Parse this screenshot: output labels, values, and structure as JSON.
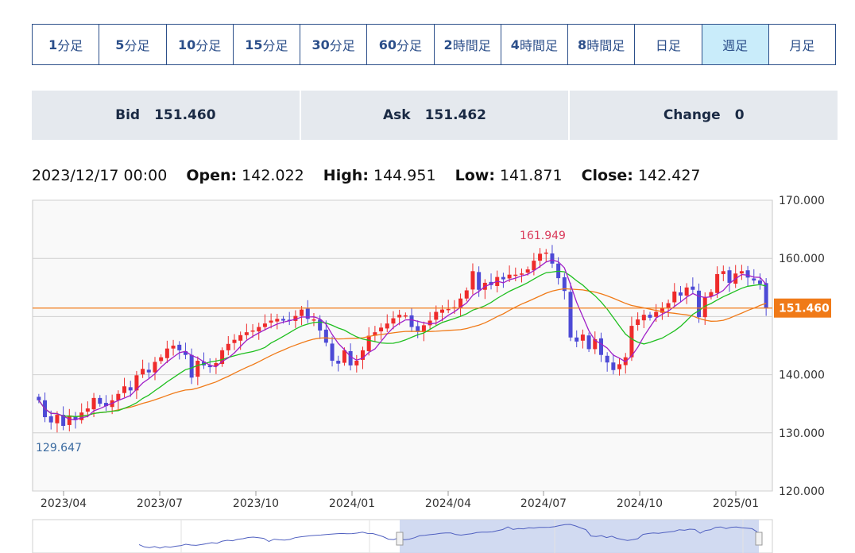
{
  "tabs": [
    {
      "num": "1",
      "unit": "分足"
    },
    {
      "num": "5",
      "unit": "分足"
    },
    {
      "num": "10",
      "unit": "分足"
    },
    {
      "num": "15",
      "unit": "分足"
    },
    {
      "num": "30",
      "unit": "分足"
    },
    {
      "num": "60",
      "unit": "分足"
    },
    {
      "num": "2",
      "unit": "時間足"
    },
    {
      "num": "4",
      "unit": "時間足"
    },
    {
      "num": "8",
      "unit": "時間足"
    },
    {
      "num": "",
      "unit": "日足"
    },
    {
      "num": "",
      "unit": "週足"
    },
    {
      "num": "",
      "unit": "月足"
    }
  ],
  "active_tab": 10,
  "quotes": {
    "bid_label": "Bid",
    "bid_value": "151.460",
    "ask_label": "Ask",
    "ask_value": "151.462",
    "change_label": "Change",
    "change_value": "0"
  },
  "ohlc": {
    "date": "2023/12/17 00:00",
    "open_label": "Open:",
    "open": "142.022",
    "high_label": "High:",
    "high": "144.951",
    "low_label": "Low:",
    "low": "141.871",
    "close_label": "Close:",
    "close": "142.427"
  },
  "colors": {
    "up": "#ee2b2b",
    "down": "#4d4ad6",
    "ma_short": "#a020c8",
    "ma_mid": "#1fbf1f",
    "ma_long": "#f07a18",
    "price_line": "#f07a18",
    "tab_text": "#2c4f8a",
    "active_tab_bg": "#c9ecfa"
  },
  "chart_data": {
    "type": "candlestick",
    "y_ticks": [
      "170.000",
      "160.000",
      "140.000",
      "130.000",
      "120.000"
    ],
    "ylim": [
      120,
      170
    ],
    "x_ticks": [
      "2023/04",
      "2023/07",
      "2023/10",
      "2024/01",
      "2024/04",
      "2024/07",
      "2024/10",
      "2025/01"
    ],
    "current_price": "151.460",
    "max_label": "161.949",
    "min_label": "129.647",
    "closes": [
      135.6,
      132.7,
      131.8,
      133.1,
      131.2,
      133.0,
      132.2,
      133.5,
      134.2,
      136.0,
      135.0,
      134.6,
      135.6,
      136.7,
      138.0,
      137.3,
      139.9,
      141.0,
      140.4,
      142.2,
      143.0,
      144.5,
      145.0,
      144.2,
      143.4,
      139.5,
      142.4,
      141.6,
      141.3,
      142.0,
      144.2,
      145.3,
      146.0,
      146.8,
      147.3,
      147.6,
      148.2,
      148.8,
      149.3,
      149.6,
      149.3,
      149.4,
      150.1,
      151.2,
      149.6,
      149.5,
      147.6,
      145.5,
      142.4,
      141.9,
      144.2,
      141.6,
      142.4,
      144.2,
      146.7,
      147.3,
      148.1,
      148.8,
      149.7,
      150.3,
      150.2,
      148.2,
      147.5,
      148.5,
      149.3,
      150.8,
      151.2,
      151.3,
      151.6,
      153.1,
      154.5,
      157.8,
      154.6,
      155.8,
      155.4,
      156.8,
      156.4,
      157.2,
      157.2,
      157.4,
      158.1,
      159.6,
      160.8,
      161.0,
      159.1,
      156.6,
      154.4,
      146.4,
      145.7,
      146.9,
      144.4,
      146.1,
      143.4,
      142.1,
      140.8,
      141.8,
      143.0,
      148.4,
      149.5,
      150.3,
      149.8,
      150.8,
      151.5,
      152.3,
      154.3,
      153.6,
      155.0,
      154.6,
      149.9,
      153.3,
      154.2,
      157.3,
      157.8,
      155.8,
      157.4,
      157.8,
      156.7,
      156.2,
      155.6,
      151.46
    ]
  }
}
